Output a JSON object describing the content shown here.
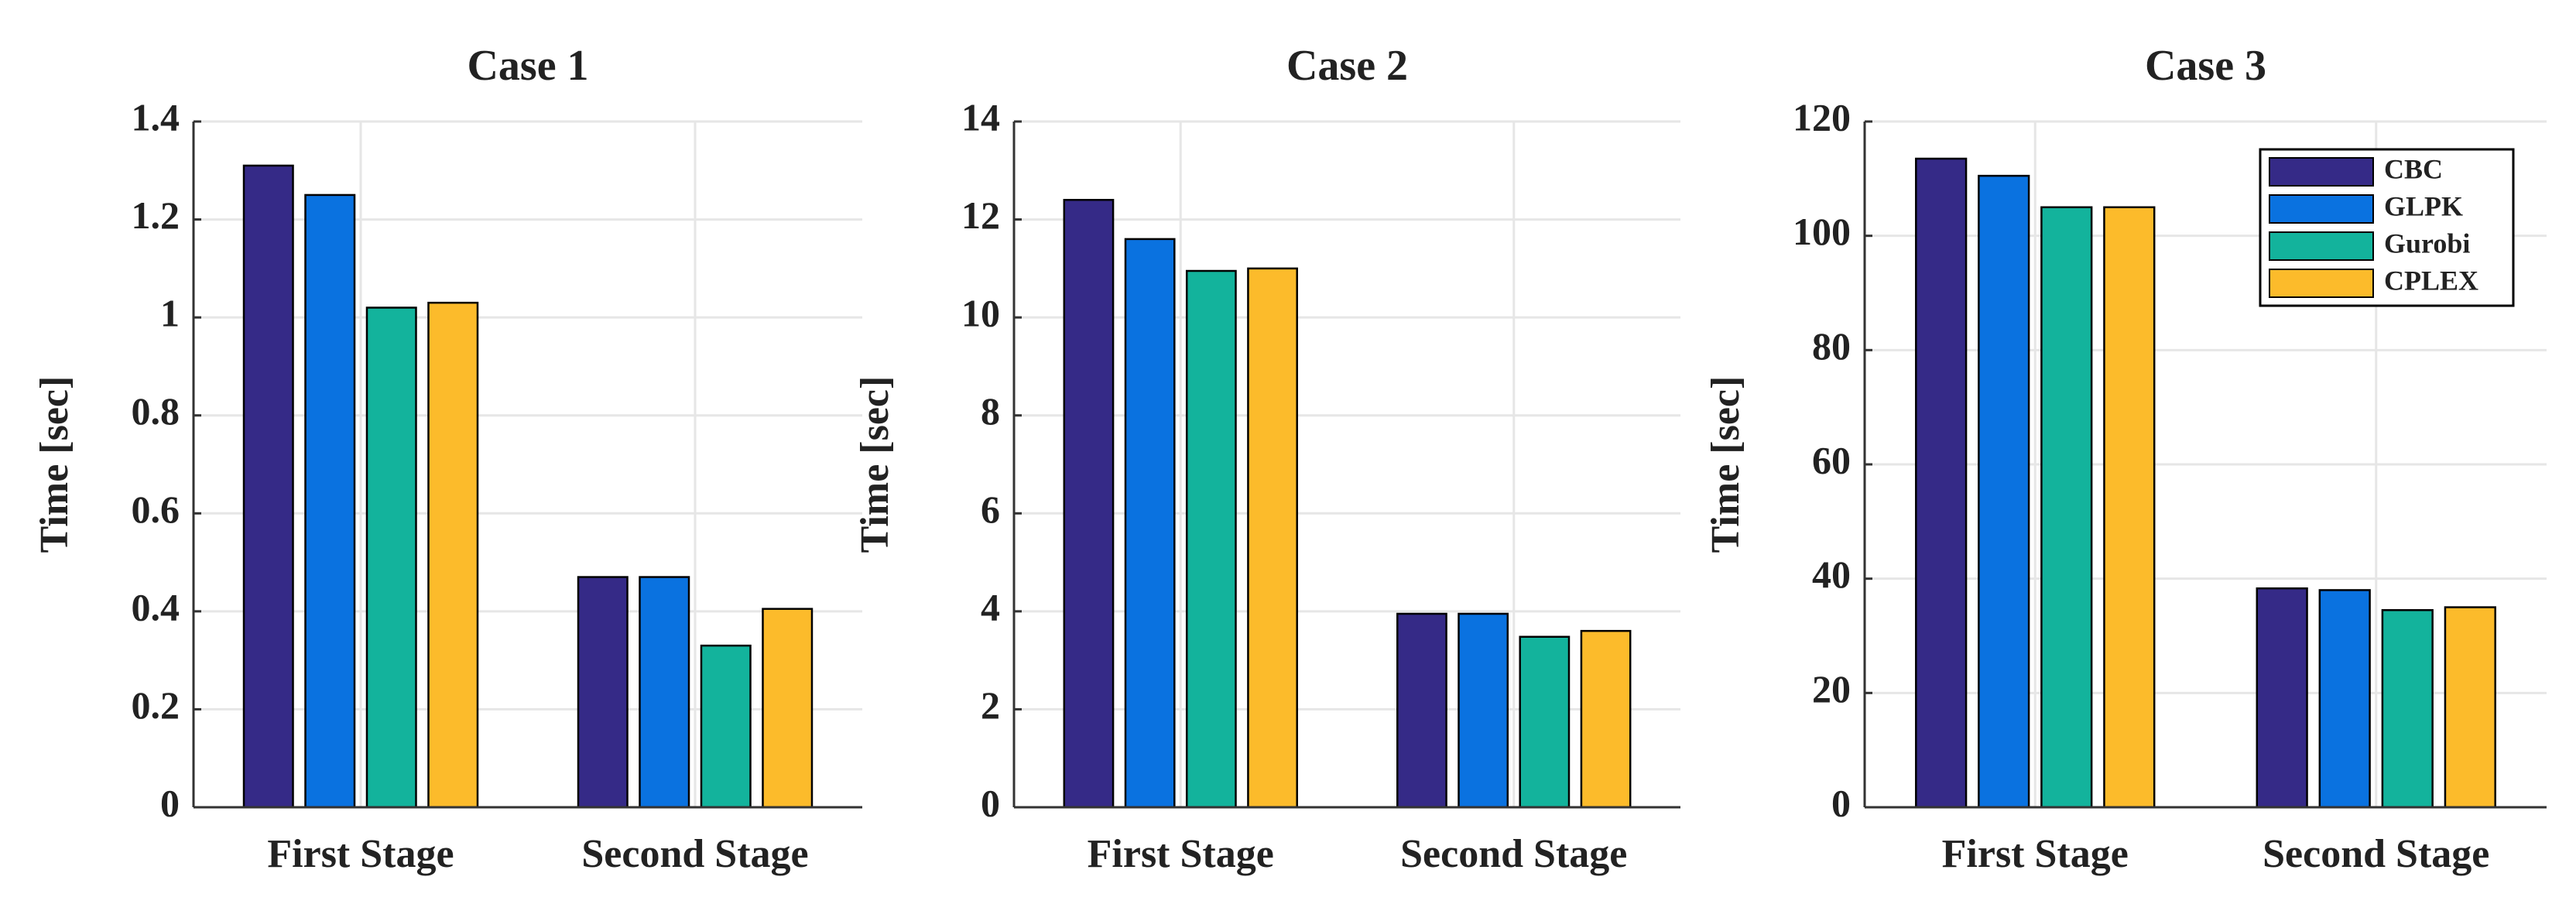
{
  "chart_data": [
    {
      "type": "bar",
      "title": "Case 1",
      "ylabel": "Time [sec]",
      "categories": [
        "First Stage",
        "Second Stage"
      ],
      "series": [
        {
          "color": "#352a87",
          "values": [
            1.31,
            0.47
          ]
        },
        {
          "color": "#0a72e0",
          "values": [
            1.25,
            0.47
          ]
        },
        {
          "color": "#13b39c",
          "values": [
            1.02,
            0.33
          ]
        },
        {
          "color": "#fcbb2b",
          "values": [
            1.03,
            0.405
          ]
        }
      ],
      "ylim": [
        0,
        1.4
      ],
      "yticks": [
        0,
        0.2,
        0.4,
        0.6,
        0.8,
        1,
        1.2,
        1.4
      ],
      "grid": true
    },
    {
      "type": "bar",
      "title": "Case 2",
      "ylabel": "Time [sec]",
      "categories": [
        "First Stage",
        "Second Stage"
      ],
      "series": [
        {
          "color": "#352a87",
          "values": [
            12.4,
            3.95
          ]
        },
        {
          "color": "#0a72e0",
          "values": [
            11.6,
            3.95
          ]
        },
        {
          "color": "#13b39c",
          "values": [
            10.95,
            3.48
          ]
        },
        {
          "color": "#fcbb2b",
          "values": [
            11.0,
            3.6
          ]
        }
      ],
      "ylim": [
        0,
        14
      ],
      "yticks": [
        0,
        2,
        4,
        6,
        8,
        10,
        12,
        14
      ],
      "grid": true
    },
    {
      "type": "bar",
      "title": "Case 3",
      "ylabel": "Time [sec]",
      "categories": [
        "First Stage",
        "Second Stage"
      ],
      "series": [
        {
          "name": "CBC",
          "color": "#352a87",
          "values": [
            113.5,
            38.3
          ]
        },
        {
          "name": "GLPK",
          "color": "#0a72e0",
          "values": [
            110.5,
            38
          ]
        },
        {
          "name": "Gurobi",
          "color": "#13b39c",
          "values": [
            105,
            34.5
          ]
        },
        {
          "name": "CPLEX",
          "color": "#fcbb2b",
          "values": [
            105,
            35
          ]
        }
      ],
      "ylim": [
        0,
        120
      ],
      "yticks": [
        0,
        20,
        40,
        60,
        80,
        100,
        120
      ],
      "grid": true,
      "legend": "upper right"
    }
  ]
}
